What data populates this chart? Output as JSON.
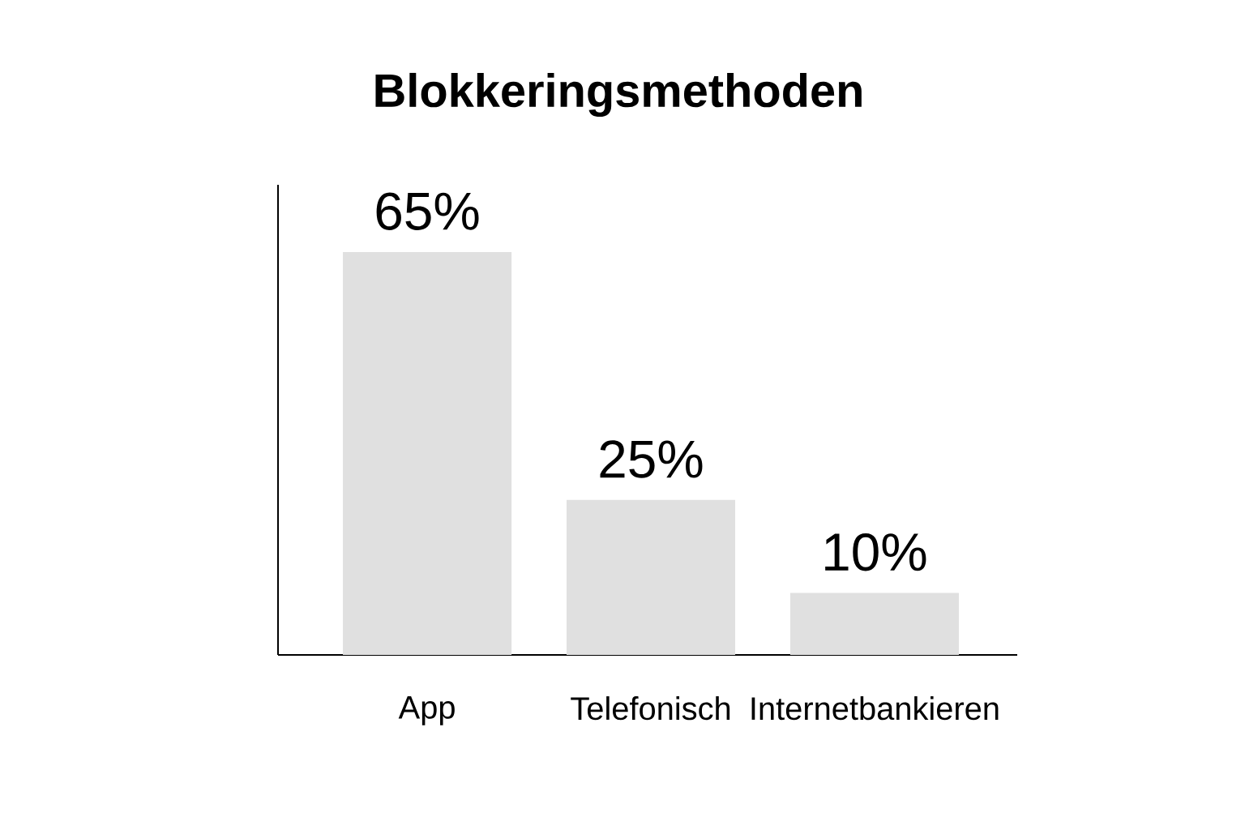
{
  "chart_data": {
    "type": "bar",
    "title": "Blokkeringsmethoden",
    "categories": [
      "App",
      "Telefonisch",
      "Internetbankieren"
    ],
    "values": [
      65,
      25,
      10
    ],
    "value_labels": [
      "65%",
      "25%",
      "10%"
    ],
    "color": "#e0e0e0"
  }
}
